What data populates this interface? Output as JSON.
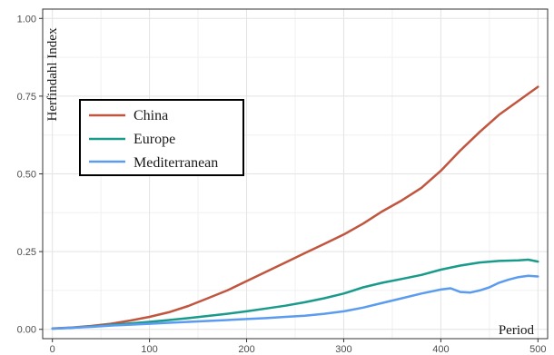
{
  "chart_data": {
    "type": "line",
    "title": "",
    "xlabel": "Period",
    "ylabel": "Herfindahl Index",
    "xlim": [
      -10,
      510
    ],
    "ylim": [
      -0.03,
      1.03
    ],
    "x_ticks": [
      0,
      100,
      200,
      300,
      400,
      500
    ],
    "y_ticks": [
      0.0,
      0.25,
      0.5,
      0.75,
      1.0
    ],
    "x_tick_labels": [
      "0",
      "100",
      "200",
      "300",
      "400",
      "500"
    ],
    "y_tick_labels": [
      "0.00",
      "0.25",
      "0.50",
      "0.75",
      "1.00"
    ],
    "grid": true,
    "legend_position": "left-middle",
    "series": [
      {
        "name": "China",
        "color": "#c0563f",
        "x": [
          0,
          20,
          40,
          60,
          80,
          100,
          120,
          140,
          160,
          180,
          200,
          220,
          240,
          260,
          280,
          300,
          320,
          340,
          360,
          380,
          400,
          420,
          440,
          460,
          480,
          500
        ],
        "y": [
          0.003,
          0.006,
          0.011,
          0.018,
          0.028,
          0.04,
          0.055,
          0.075,
          0.1,
          0.125,
          0.155,
          0.185,
          0.215,
          0.245,
          0.275,
          0.305,
          0.34,
          0.38,
          0.415,
          0.455,
          0.51,
          0.575,
          0.635,
          0.69,
          0.735,
          0.78
        ]
      },
      {
        "name": "Europe",
        "color": "#1a9a8a",
        "x": [
          0,
          20,
          40,
          60,
          80,
          100,
          120,
          140,
          160,
          180,
          200,
          220,
          240,
          260,
          280,
          300,
          320,
          340,
          360,
          380,
          400,
          420,
          440,
          460,
          480,
          490,
          500
        ],
        "y": [
          0.002,
          0.005,
          0.009,
          0.014,
          0.019,
          0.024,
          0.03,
          0.036,
          0.043,
          0.05,
          0.058,
          0.067,
          0.076,
          0.087,
          0.1,
          0.115,
          0.135,
          0.15,
          0.162,
          0.175,
          0.192,
          0.205,
          0.215,
          0.22,
          0.222,
          0.224,
          0.218
        ]
      },
      {
        "name": "Mediterranean",
        "color": "#5b9bf0",
        "x": [
          0,
          20,
          40,
          60,
          80,
          100,
          120,
          140,
          160,
          180,
          200,
          220,
          240,
          260,
          280,
          300,
          320,
          340,
          360,
          380,
          400,
          410,
          420,
          430,
          440,
          450,
          460,
          470,
          480,
          490,
          500
        ],
        "y": [
          0.002,
          0.005,
          0.008,
          0.012,
          0.015,
          0.018,
          0.021,
          0.024,
          0.027,
          0.03,
          0.033,
          0.036,
          0.04,
          0.044,
          0.05,
          0.058,
          0.07,
          0.085,
          0.1,
          0.115,
          0.128,
          0.132,
          0.12,
          0.118,
          0.125,
          0.135,
          0.15,
          0.16,
          0.168,
          0.172,
          0.17
        ]
      }
    ]
  }
}
